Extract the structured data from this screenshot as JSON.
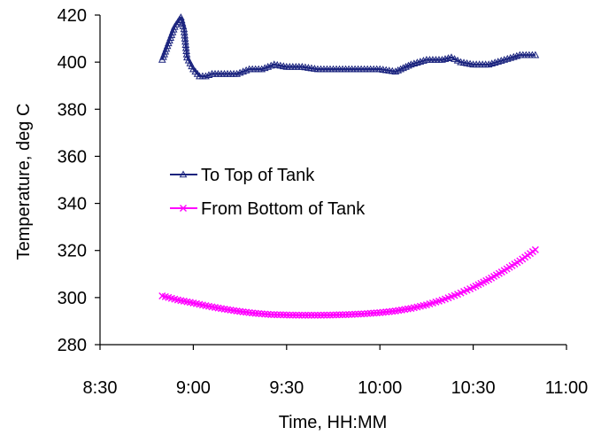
{
  "chart_data": {
    "type": "line",
    "title": "",
    "xlabel": "Time, HH:MM",
    "ylabel": "Temperature, deg C",
    "xlim": [
      "8:30",
      "11:00"
    ],
    "ylim": [
      280,
      420
    ],
    "x_ticks": [
      "8:30",
      "9:00",
      "9:30",
      "10:00",
      "10:30",
      "11:00"
    ],
    "y_ticks": [
      280,
      300,
      320,
      340,
      360,
      380,
      400,
      420
    ],
    "grid": false,
    "legend_position": "center-left",
    "series": [
      {
        "name": "To Top of Tank",
        "color": "#1a237e",
        "marker": "triangle",
        "x": [
          "8:50",
          "8:52",
          "8:54",
          "8:56",
          "8:57",
          "8:58",
          "9:00",
          "9:02",
          "9:04",
          "9:06",
          "9:08",
          "9:10",
          "9:14",
          "9:18",
          "9:22",
          "9:26",
          "9:30",
          "9:35",
          "9:40",
          "9:45",
          "9:50",
          "9:55",
          "10:00",
          "10:05",
          "10:10",
          "10:15",
          "10:20",
          "10:23",
          "10:26",
          "10:30",
          "10:35",
          "10:40",
          "10:45",
          "10:50"
        ],
        "values": [
          401,
          408,
          415,
          419,
          414,
          402,
          397,
          394,
          394,
          395,
          395,
          395,
          395,
          397,
          397,
          399,
          398,
          398,
          397,
          397,
          397,
          397,
          397,
          396,
          399,
          401,
          401,
          402,
          400,
          399,
          399,
          401,
          403,
          403
        ]
      },
      {
        "name": "From Bottom of Tank",
        "color": "#ff00ff",
        "marker": "x",
        "x": [
          "8:50",
          "8:55",
          "9:00",
          "9:05",
          "9:10",
          "9:15",
          "9:20",
          "9:25",
          "9:30",
          "9:35",
          "9:40",
          "9:45",
          "9:50",
          "9:55",
          "10:00",
          "10:05",
          "10:10",
          "10:15",
          "10:20",
          "10:25",
          "10:30",
          "10:35",
          "10:40",
          "10:45",
          "10:50"
        ],
        "values": [
          300.7,
          299,
          297.7,
          296.3,
          295.1,
          294.1,
          293.3,
          292.8,
          292.6,
          292.5,
          292.5,
          292.6,
          292.8,
          293.1,
          293.6,
          294.3,
          295.4,
          296.9,
          298.9,
          301.4,
          304.3,
          307.7,
          311.5,
          315.6,
          320.3
        ]
      }
    ]
  }
}
